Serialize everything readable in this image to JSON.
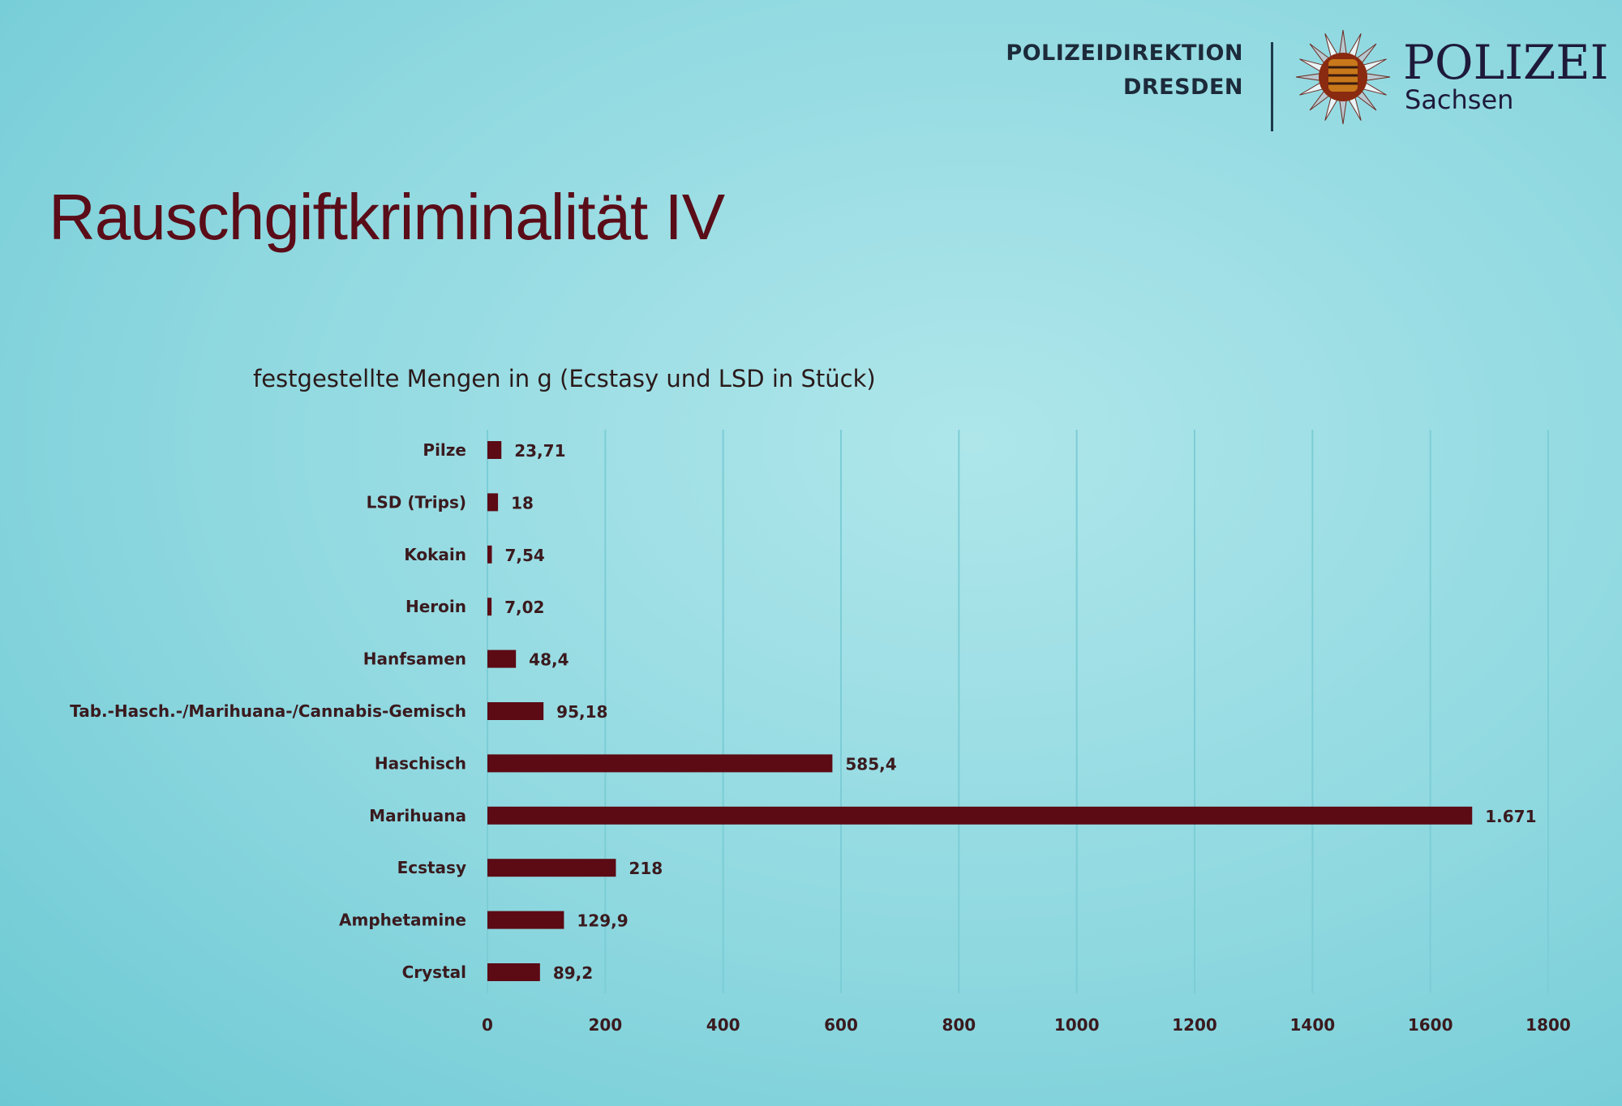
{
  "header": {
    "org_line1": "POLIZEIDIREKTION",
    "org_line2": "DRESDEN",
    "logo_main": "POLIZEI",
    "logo_sub": "Sachsen"
  },
  "slide_title": "Rauschgiftkriminalität IV",
  "chart_data": {
    "type": "bar",
    "orientation": "horizontal",
    "title": "festgestellte Mengen in g (Ecstasy und LSD in Stück)",
    "categories": [
      "Pilze",
      "LSD (Trips)",
      "Kokain",
      "Heroin",
      "Hanfsamen",
      "Tab.-Hasch.-/Marihuana-/Cannabis-Gemisch",
      "Haschisch",
      "Marihuana",
      "Ecstasy",
      "Amphetamine",
      "Crystal"
    ],
    "values": [
      23.71,
      18,
      7.54,
      7.02,
      48.4,
      95.18,
      585.4,
      1671,
      218,
      129.9,
      89.2
    ],
    "data_labels": [
      "23,71",
      "18",
      "7,54",
      "7,02",
      "48,4",
      "95,18",
      "585,4",
      "1.671",
      "218",
      "129,9",
      "89,2"
    ],
    "xlim": [
      0,
      1800
    ],
    "xticks": [
      "0",
      "200",
      "400",
      "600",
      "800",
      "1000",
      "1200",
      "1400",
      "1600",
      "1800"
    ],
    "grid": true,
    "bar_color": "#5c0a14"
  }
}
